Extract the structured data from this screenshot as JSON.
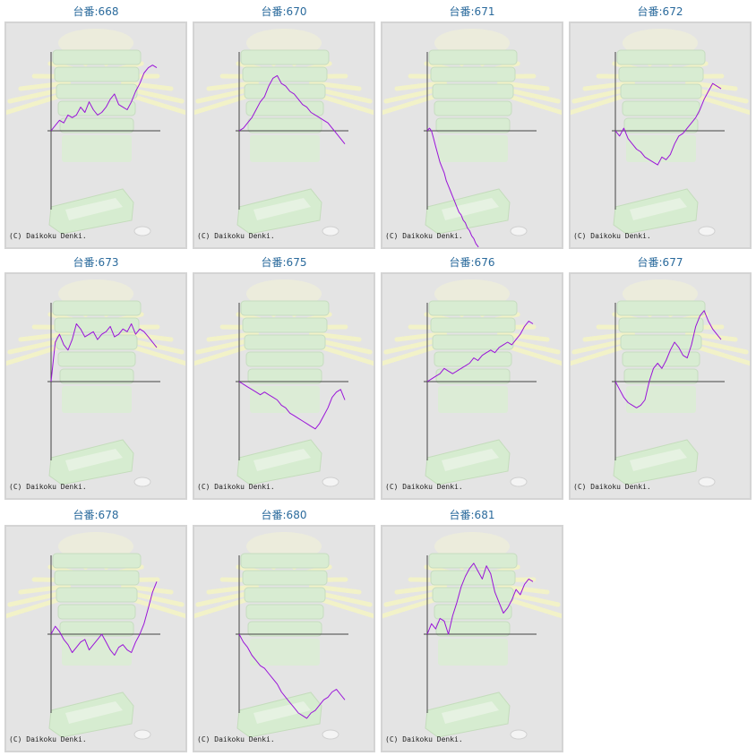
{
  "page": {
    "label_prefix": "台番:",
    "copyright": "(C) Daikoku Denki."
  },
  "colors": {
    "line": "#9a14d8",
    "title": "#2a6a9c",
    "axis": "#444444",
    "bg": "#e4e4e4",
    "frame": "#d4d4d4"
  },
  "chart_data": [
    {
      "type": "line",
      "title": "台番:668",
      "x": [
        0,
        2,
        4,
        6,
        8,
        10,
        12,
        14,
        16,
        18,
        20,
        22,
        24,
        26,
        28,
        30,
        32,
        34,
        36,
        38,
        40,
        42,
        44,
        46,
        48,
        50
      ],
      "y": [
        0,
        2,
        4,
        3,
        6,
        5,
        6,
        9,
        7,
        11,
        8,
        6,
        7,
        9,
        12,
        14,
        10,
        9,
        8,
        11,
        15,
        18,
        22,
        24,
        25,
        24
      ]
    },
    {
      "type": "line",
      "title": "台番:670",
      "x": [
        0,
        2,
        4,
        6,
        8,
        10,
        12,
        14,
        16,
        18,
        20,
        22,
        24,
        26,
        28,
        30,
        32,
        34,
        36,
        38,
        40,
        42,
        44,
        46,
        48,
        50
      ],
      "y": [
        0,
        1,
        3,
        5,
        8,
        11,
        13,
        17,
        20,
        21,
        18,
        17,
        15,
        14,
        12,
        10,
        9,
        7,
        6,
        5,
        4,
        3,
        1,
        -1,
        -3,
        -5
      ]
    },
    {
      "type": "line",
      "title": "台番:671",
      "x": [
        0,
        1,
        2,
        3,
        4,
        5,
        6,
        7,
        8,
        9,
        10,
        11,
        12,
        13,
        14,
        15,
        16,
        17,
        18,
        19,
        20,
        21,
        22,
        23,
        24,
        25
      ],
      "y": [
        0,
        1,
        0,
        -3,
        -6,
        -9,
        -12,
        -14,
        -16,
        -19,
        -21,
        -23,
        -25,
        -27,
        -29,
        -31,
        -32,
        -34,
        -35,
        -37,
        -38,
        -40,
        -41,
        -43,
        -44,
        -46
      ]
    },
    {
      "type": "line",
      "title": "台番:672",
      "x": [
        0,
        2,
        4,
        6,
        8,
        10,
        12,
        14,
        16,
        18,
        20,
        22,
        24,
        26,
        28,
        30,
        32,
        34,
        36,
        38,
        40,
        42,
        44,
        46,
        48,
        50
      ],
      "y": [
        0,
        -2,
        1,
        -3,
        -5,
        -7,
        -8,
        -10,
        -11,
        -12,
        -13,
        -10,
        -11,
        -9,
        -5,
        -2,
        -1,
        1,
        3,
        5,
        8,
        12,
        15,
        18,
        17,
        16
      ]
    },
    {
      "type": "line",
      "title": "台番:673",
      "x": [
        0,
        2,
        4,
        6,
        8,
        10,
        12,
        14,
        16,
        18,
        20,
        22,
        24,
        26,
        28,
        30,
        32,
        34,
        36,
        38,
        40,
        42,
        44,
        46,
        48,
        50
      ],
      "y": [
        0,
        15,
        18,
        14,
        12,
        16,
        22,
        20,
        17,
        18,
        19,
        16,
        18,
        19,
        21,
        17,
        18,
        20,
        19,
        22,
        18,
        20,
        19,
        17,
        15,
        13
      ]
    },
    {
      "type": "line",
      "title": "台番:675",
      "x": [
        0,
        2,
        4,
        6,
        8,
        10,
        12,
        14,
        16,
        18,
        20,
        22,
        24,
        26,
        28,
        30,
        32,
        34,
        36,
        38,
        40,
        42,
        44,
        46,
        48,
        50
      ],
      "y": [
        0,
        -1,
        -2,
        -3,
        -4,
        -5,
        -4,
        -5,
        -6,
        -7,
        -9,
        -10,
        -12,
        -13,
        -14,
        -15,
        -16,
        -17,
        -18,
        -16,
        -13,
        -10,
        -6,
        -4,
        -3,
        -7
      ]
    },
    {
      "type": "line",
      "title": "台番:676",
      "x": [
        0,
        2,
        4,
        6,
        8,
        10,
        12,
        14,
        16,
        18,
        20,
        22,
        24,
        26,
        28,
        30,
        32,
        34,
        36,
        38,
        40,
        42,
        44,
        46,
        48,
        50
      ],
      "y": [
        0,
        1,
        2,
        3,
        5,
        4,
        3,
        4,
        5,
        6,
        7,
        9,
        8,
        10,
        11,
        12,
        11,
        13,
        14,
        15,
        14,
        16,
        18,
        21,
        23,
        22
      ]
    },
    {
      "type": "line",
      "title": "台番:677",
      "x": [
        0,
        2,
        4,
        6,
        8,
        10,
        12,
        14,
        16,
        18,
        20,
        22,
        24,
        26,
        28,
        30,
        32,
        34,
        36,
        38,
        40,
        42,
        44,
        46,
        48,
        50
      ],
      "y": [
        0,
        -3,
        -6,
        -8,
        -9,
        -10,
        -9,
        -7,
        0,
        5,
        7,
        5,
        8,
        12,
        15,
        13,
        10,
        9,
        14,
        21,
        25,
        27,
        23,
        20,
        18,
        16
      ]
    },
    {
      "type": "line",
      "title": "台番:678",
      "x": [
        0,
        2,
        4,
        6,
        8,
        10,
        12,
        14,
        16,
        18,
        20,
        22,
        24,
        26,
        28,
        30,
        32,
        34,
        36,
        38,
        40,
        42,
        44,
        46,
        48,
        50
      ],
      "y": [
        0,
        3,
        1,
        -2,
        -4,
        -7,
        -5,
        -3,
        -2,
        -6,
        -4,
        -2,
        0,
        -3,
        -6,
        -8,
        -5,
        -4,
        -6,
        -7,
        -3,
        0,
        4,
        10,
        16,
        20
      ]
    },
    {
      "type": "line",
      "title": "台番:680",
      "x": [
        0,
        2,
        4,
        6,
        8,
        10,
        12,
        14,
        16,
        18,
        20,
        22,
        24,
        26,
        28,
        30,
        32,
        34,
        36,
        38,
        40,
        42,
        44,
        46,
        48,
        50
      ],
      "y": [
        0,
        -3,
        -5,
        -8,
        -10,
        -12,
        -13,
        -15,
        -17,
        -19,
        -22,
        -24,
        -26,
        -28,
        -30,
        -31,
        -32,
        -30,
        -29,
        -27,
        -25,
        -24,
        -22,
        -21,
        -23,
        -25
      ]
    },
    {
      "type": "line",
      "title": "台番:681",
      "x": [
        0,
        2,
        4,
        6,
        8,
        10,
        12,
        14,
        16,
        18,
        20,
        22,
        24,
        26,
        28,
        30,
        32,
        34,
        36,
        38,
        40,
        42,
        44,
        46,
        48,
        50
      ],
      "y": [
        0,
        4,
        2,
        6,
        5,
        0,
        7,
        12,
        18,
        22,
        25,
        27,
        24,
        21,
        26,
        23,
        16,
        12,
        8,
        10,
        13,
        17,
        15,
        19,
        21,
        20
      ]
    }
  ]
}
